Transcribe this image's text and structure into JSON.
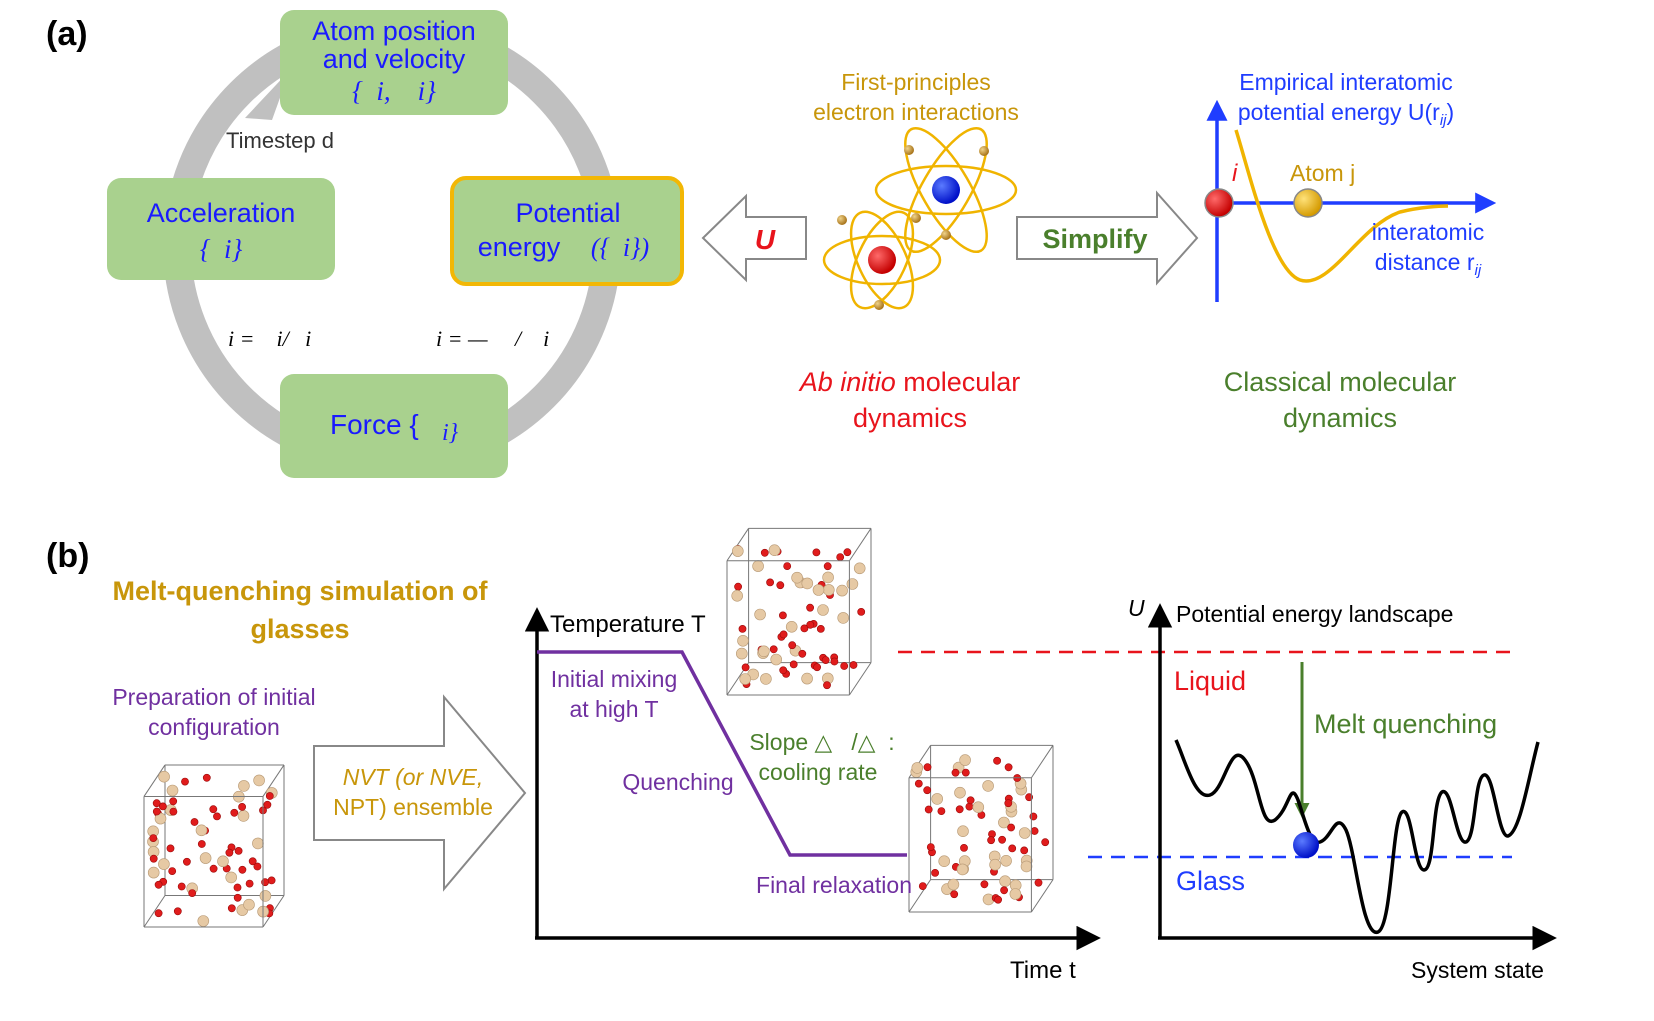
{
  "panel_a": {
    "label": "(a)",
    "cycle": {
      "box_positions": {
        "line1": "Atom position",
        "line2": "and velocity",
        "math": "{  i,    i}"
      },
      "box_acceleration": {
        "line1": "Acceleration",
        "math": "{  i}"
      },
      "box_potential": {
        "line1": "Potential",
        "line2": "energy",
        "math": "({  i})"
      },
      "box_force": {
        "line1": "Force {",
        "math": "i}"
      },
      "timestep": "Timestep d",
      "eq_left": "i =    i/   i",
      "eq_right": "i = —     /    i"
    },
    "arrow_u_label": "U",
    "simplify_label": "Simplify",
    "ab_initio": {
      "top_line1": "First-principles",
      "top_line2": "electron interactions",
      "bottom_italic": "Ab initio",
      "bottom_rest": " molecular",
      "bottom_line2": "dynamics"
    },
    "classical": {
      "ylabel_line1": "Empirical interatomic",
      "ylabel_line2": "potential energy U(r",
      "ylabel_sub": "ij",
      "ylabel_close": ")",
      "atom_i": "i",
      "atom_j": "Atom j",
      "xlabel_line1": "interatomic",
      "xlabel_line2": "distance r",
      "xlabel_sub": "ij",
      "bottom_line1": "Classical molecular",
      "bottom_line2": "dynamics"
    }
  },
  "panel_b": {
    "label": "(b)",
    "title_line1": "Melt-quenching simulation of",
    "title_line2": "glasses",
    "prep_line1": "Preparation of initial",
    "prep_line2": "configuration",
    "ensemble_line1": "NVT (or NVE,",
    "ensemble_line2": "NPT) ensemble",
    "temp_axis": "Temperature T",
    "time_axis": "Time t",
    "initial_mixing_line1": "Initial mixing",
    "initial_mixing_line2": "at high T",
    "slope_line1": "Slope △   /△  :",
    "slope_line2": "cooling rate",
    "quenching": "Quenching",
    "final_relaxation": "Final relaxation",
    "pel_u": "U",
    "pel_title": "Potential energy landscape",
    "liquid": "Liquid",
    "glass": "Glass",
    "melt_quenching": "Melt quenching",
    "system_state": "System state"
  },
  "colors": {
    "box_fill": "#a9d18e",
    "box_border_highlight": "#f2b705",
    "blue_text": "#1a1aff",
    "red": "#e8141c",
    "gold": "#c8960a",
    "green": "#4a7f2c",
    "purple": "#7030a0",
    "gray_arrow": "#c0c0c0",
    "axis_blue": "#1f3dff",
    "curve_gold": "#f0b400"
  },
  "icons": [
    "atom-icon-red",
    "atom-icon-blue",
    "glass-cube-icon"
  ]
}
